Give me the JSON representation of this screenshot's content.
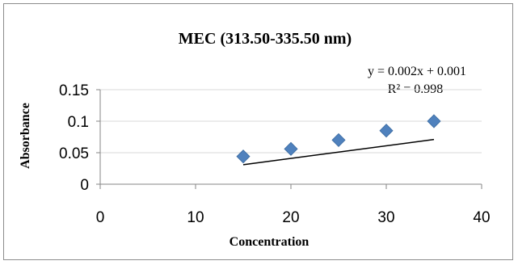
{
  "chart_data": {
    "type": "scatter",
    "title": "MEC (313.50-335.50 nm)",
    "xlabel": "Concentration",
    "ylabel": "Absorbance",
    "xlim": [
      0,
      40
    ],
    "ylim": [
      0,
      0.15
    ],
    "x_ticks": [
      "0",
      "10",
      "20",
      "30",
      "40"
    ],
    "y_ticks": [
      "0",
      "0.05",
      "0.1",
      "0.15"
    ],
    "grid": true,
    "legend": "none",
    "marker_color": "#4f81bd",
    "series": [
      {
        "x": [
          15,
          20,
          25,
          30,
          35
        ],
        "y": [
          0.044,
          0.056,
          0.07,
          0.085,
          0.1
        ]
      }
    ],
    "trendline": {
      "slope": 0.002,
      "intercept": 0.001,
      "x_range": [
        15,
        35
      ],
      "equation": "y = 0.002x + 0.001",
      "r_squared": "R² = 0.998"
    }
  }
}
